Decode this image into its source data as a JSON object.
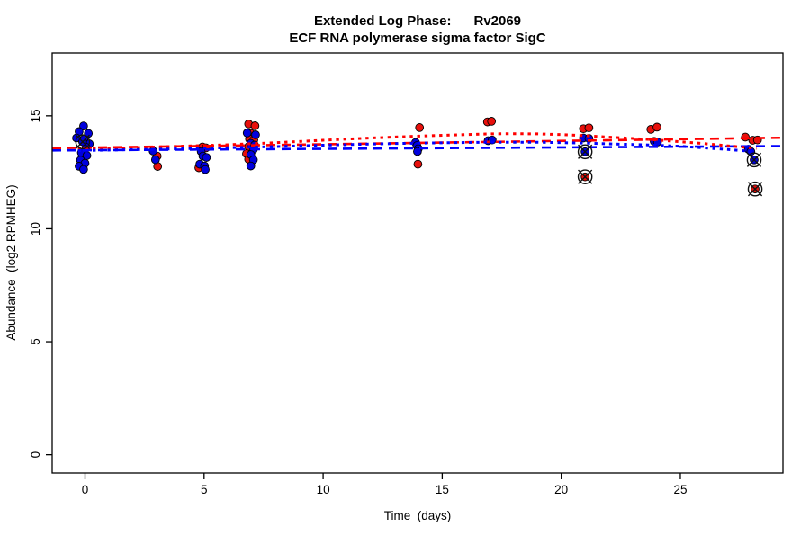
{
  "chart_data": {
    "type": "scatter",
    "title": "Extended Log Phase:      Rv2069",
    "subtitle": "ECF RNA polymerase sigma factor SigC",
    "xlabel": "Time  (days)",
    "ylabel": "Abundance  (log2 RPMHEG)",
    "xlim": [
      -1.38,
      29.31
    ],
    "ylim": [
      -0.81,
      17.78
    ],
    "xticks": [
      0,
      5,
      10,
      15,
      20,
      25
    ],
    "yticks": [
      0,
      5,
      10,
      15
    ],
    "grid": false,
    "legend": "none",
    "colors": {
      "red_point": "#E8100C",
      "blue_point": "#0000DD",
      "red_line": "#FF0000",
      "blue_line": "#0000FF",
      "point_stroke": "#000000",
      "outlier_marker": "#111111"
    },
    "points": {
      "red": [
        [
          3.03,
          13.22
        ],
        [
          3.05,
          12.76
        ],
        [
          4.93,
          13.62
        ],
        [
          5.08,
          13.58
        ],
        [
          4.78,
          12.7
        ],
        [
          6.87,
          14.64
        ],
        [
          7.14,
          14.56
        ],
        [
          6.96,
          14.22
        ],
        [
          6.91,
          13.97
        ],
        [
          7.09,
          13.94
        ],
        [
          6.87,
          13.64
        ],
        [
          6.78,
          13.32
        ],
        [
          6.87,
          13.08
        ],
        [
          14.05,
          14.48
        ],
        [
          13.98,
          12.86
        ],
        [
          16.9,
          14.73
        ],
        [
          17.07,
          14.76
        ],
        [
          20.93,
          14.43
        ],
        [
          21.16,
          14.47
        ],
        [
          23.76,
          14.4
        ],
        [
          24.02,
          14.5
        ],
        [
          27.73,
          14.06
        ],
        [
          28.04,
          13.92
        ],
        [
          28.24,
          13.93
        ]
      ],
      "blue": [
        [
          -0.06,
          14.55
        ],
        [
          -0.25,
          14.3
        ],
        [
          0.14,
          14.22
        ],
        [
          -0.36,
          14.02
        ],
        [
          -0.05,
          13.96
        ],
        [
          0.18,
          13.76
        ],
        [
          0.05,
          13.6
        ],
        [
          -0.15,
          13.37
        ],
        [
          0.08,
          13.24
        ],
        [
          -0.19,
          13.04
        ],
        [
          0.0,
          12.9
        ],
        [
          -0.25,
          12.77
        ],
        [
          -0.06,
          12.63
        ],
        [
          2.86,
          13.44
        ],
        [
          2.96,
          13.06
        ],
        [
          4.88,
          13.42
        ],
        [
          4.95,
          13.22
        ],
        [
          5.1,
          13.16
        ],
        [
          4.82,
          12.86
        ],
        [
          5.02,
          12.78
        ],
        [
          5.05,
          12.62
        ],
        [
          6.81,
          14.24
        ],
        [
          7.16,
          14.16
        ],
        [
          6.96,
          13.78
        ],
        [
          7.12,
          13.7
        ],
        [
          7.07,
          13.51
        ],
        [
          6.96,
          13.28
        ],
        [
          7.07,
          13.05
        ],
        [
          6.96,
          12.78
        ],
        [
          13.88,
          13.82
        ],
        [
          13.94,
          13.68
        ],
        [
          14.0,
          13.55
        ],
        [
          13.96,
          13.42
        ],
        [
          16.93,
          13.9
        ],
        [
          17.1,
          13.93
        ],
        [
          20.93,
          14.02
        ],
        [
          21.16,
          14.0
        ],
        [
          23.9,
          13.87
        ],
        [
          24.04,
          13.84
        ],
        [
          27.86,
          13.52
        ],
        [
          27.96,
          13.42
        ]
      ]
    },
    "outliers": [
      {
        "series": "blue",
        "x": -0.1,
        "y": 13.85
      },
      {
        "series": "blue",
        "x": 21.0,
        "y": 13.41
      },
      {
        "series": "red",
        "x": 21.0,
        "y": 12.3
      },
      {
        "series": "blue",
        "x": 28.1,
        "y": 13.05
      },
      {
        "series": "red",
        "x": 28.14,
        "y": 11.76
      }
    ],
    "fits": [
      {
        "name": "red-linear",
        "style": "dashed",
        "color": "#FF0000",
        "points": [
          [
            -1.38,
            13.57
          ],
          [
            29.31,
            14.03
          ]
        ]
      },
      {
        "name": "blue-linear",
        "style": "dashed",
        "color": "#0000FF",
        "points": [
          [
            -1.38,
            13.47
          ],
          [
            29.31,
            13.66
          ]
        ]
      },
      {
        "name": "red-loess",
        "style": "dotted",
        "color": "#FF0000",
        "points": [
          [
            -0.3,
            13.54
          ],
          [
            2,
            13.59
          ],
          [
            4,
            13.65
          ],
          [
            6,
            13.72
          ],
          [
            8,
            13.81
          ],
          [
            10,
            13.92
          ],
          [
            12,
            14.02
          ],
          [
            14,
            14.1
          ],
          [
            16,
            14.17
          ],
          [
            17,
            14.2
          ],
          [
            18,
            14.21
          ],
          [
            19,
            14.2
          ],
          [
            20,
            14.17
          ],
          [
            21,
            14.12
          ],
          [
            22,
            14.06
          ],
          [
            23,
            14.0
          ],
          [
            24,
            13.93
          ],
          [
            25,
            13.85
          ],
          [
            26,
            13.77
          ],
          [
            27,
            13.67
          ],
          [
            28.2,
            13.56
          ]
        ]
      },
      {
        "name": "blue-loess",
        "style": "dotted",
        "color": "#0000FF",
        "points": [
          [
            -0.3,
            13.46
          ],
          [
            2,
            13.5
          ],
          [
            4,
            13.54
          ],
          [
            6,
            13.59
          ],
          [
            8,
            13.64
          ],
          [
            10,
            13.7
          ],
          [
            12,
            13.75
          ],
          [
            14,
            13.79
          ],
          [
            16,
            13.82
          ],
          [
            17,
            13.83
          ],
          [
            18,
            13.83
          ],
          [
            19,
            13.83
          ],
          [
            20,
            13.81
          ],
          [
            21,
            13.79
          ],
          [
            22,
            13.76
          ],
          [
            23,
            13.73
          ],
          [
            24,
            13.7
          ],
          [
            25,
            13.65
          ],
          [
            26,
            13.58
          ],
          [
            27,
            13.51
          ],
          [
            28.2,
            13.41
          ]
        ]
      }
    ]
  }
}
